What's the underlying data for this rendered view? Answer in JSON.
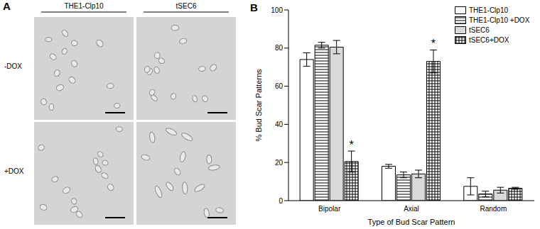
{
  "panel_labels": [
    "A",
    "B"
  ],
  "panel_a": {
    "columns": [
      "THE1-Clp10",
      "tSEC6"
    ],
    "rows": [
      "-DOX",
      "+DOX"
    ]
  },
  "chart_data": {
    "type": "bar",
    "categories": [
      "Bipolar",
      "Axial",
      "Random"
    ],
    "series": [
      {
        "name": "THE1-Clp10",
        "color": "#ffffff",
        "values": [
          74,
          18,
          7.5
        ],
        "errors": [
          3.5,
          1,
          4.5
        ]
      },
      {
        "name": "THE1-Clp10 +DOX",
        "color": "#ffffff",
        "values": [
          81.5,
          13.5,
          3.5
        ],
        "errors": [
          1.5,
          1.5,
          1.5
        ]
      },
      {
        "name": "tSEC6",
        "color": "#d9d9d9",
        "values": [
          80.5,
          14,
          5.5
        ],
        "errors": [
          3.5,
          2,
          1.5
        ]
      },
      {
        "name": "tSEC6+DOX",
        "color": "#ffffff",
        "values": [
          20.5,
          73,
          6.5
        ],
        "errors": [
          5.5,
          6,
          0.5
        ]
      }
    ],
    "ylim": [
      0,
      100
    ],
    "yticks": [
      0,
      20,
      40,
      60,
      80,
      100
    ],
    "y_label": "% Bud Scar Patterns",
    "x_label": "Type of Bud Scar Pattern",
    "legend": "top-right",
    "grid": false,
    "annotations": [
      {
        "category": "Bipolar",
        "series": "tSEC6+DOX",
        "text": "*"
      },
      {
        "category": "Axial",
        "series": "tSEC6+DOX",
        "text": "*"
      }
    ]
  }
}
